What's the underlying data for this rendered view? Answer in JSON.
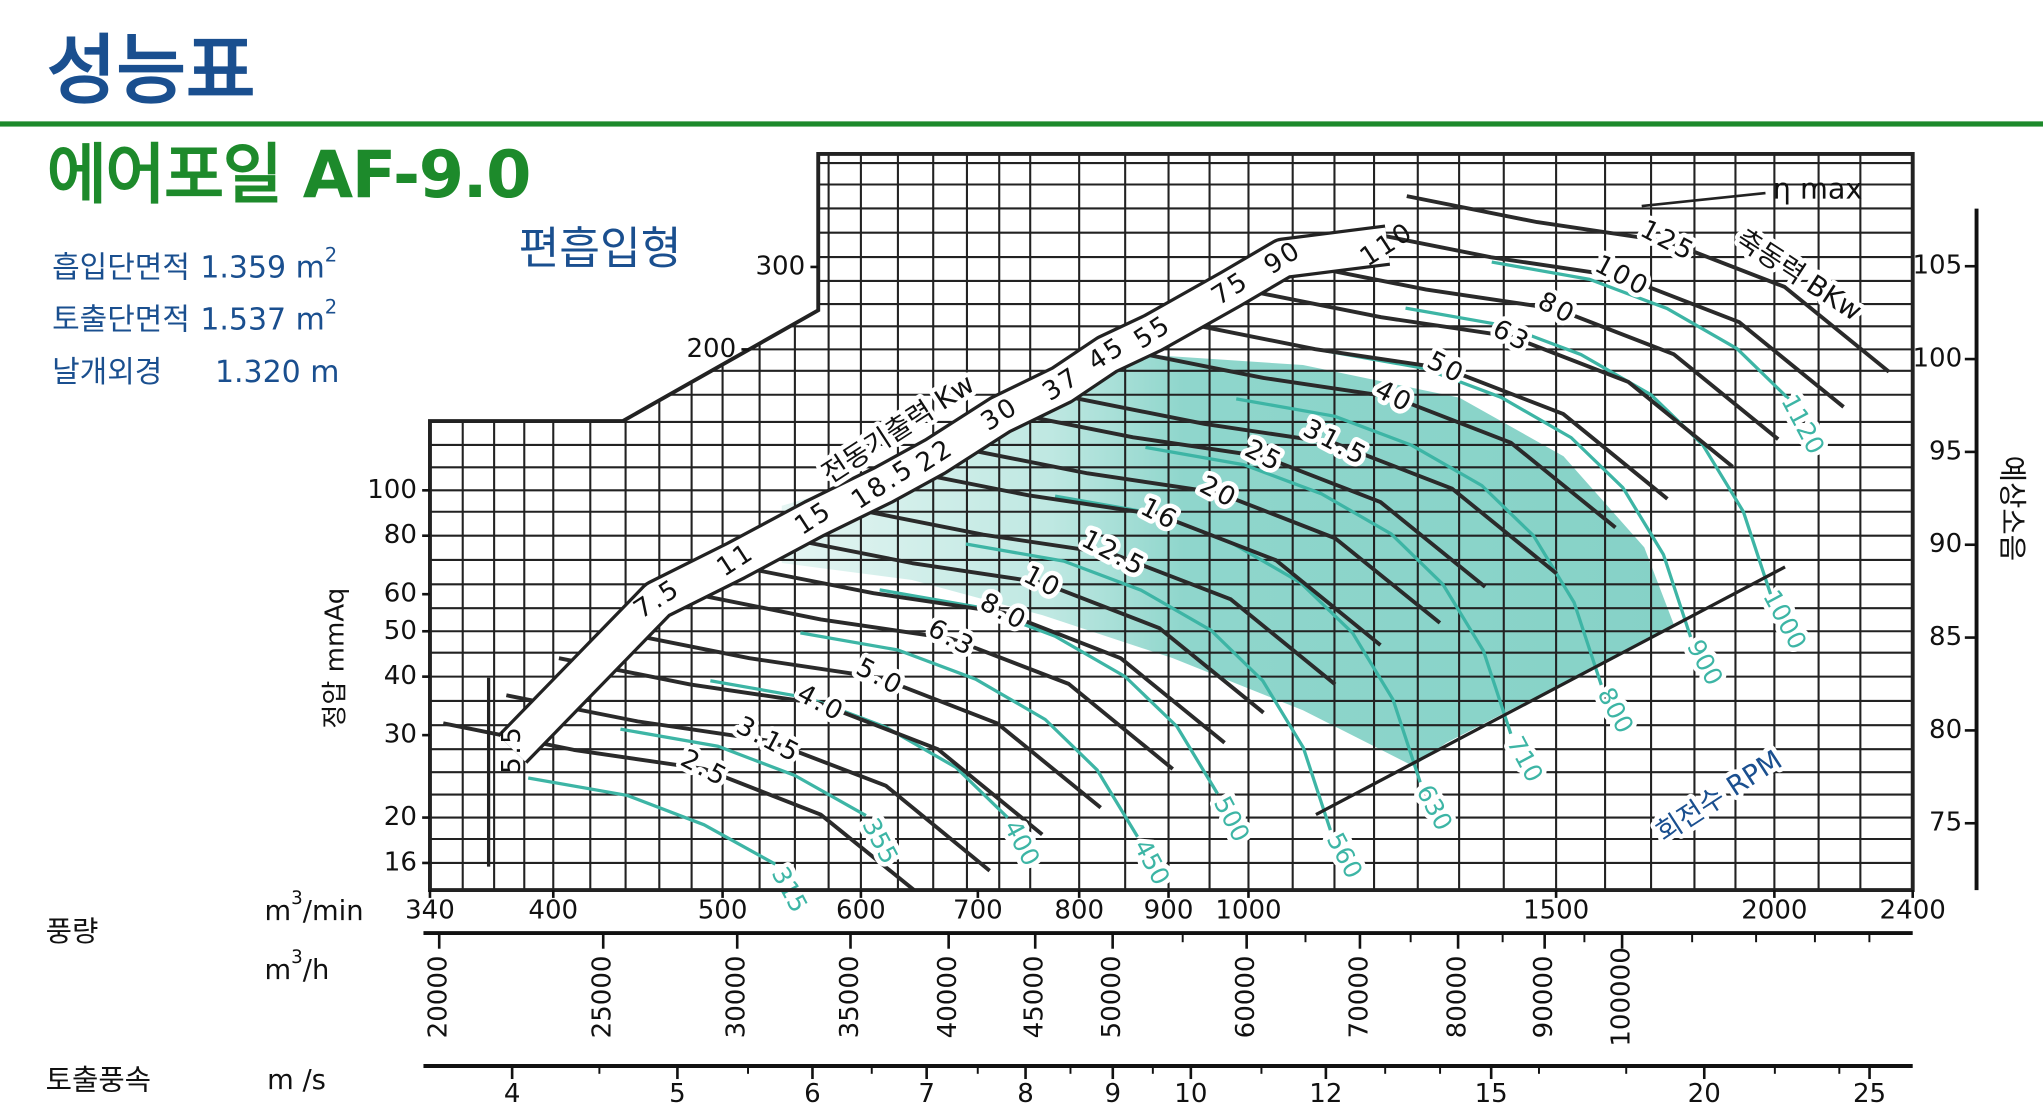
{
  "header": {
    "title": "성능표",
    "model": "에어포일 AF-9.0",
    "inlet_type": "편흡입형"
  },
  "specs": [
    {
      "label": "흡입단면적",
      "value": "1.359 m",
      "sup": "2"
    },
    {
      "label": "토출단면적",
      "value": "1.537 m",
      "sup": "2"
    },
    {
      "label": "날개외경",
      "value": "1.320 m"
    }
  ],
  "chart_data": {
    "type": "fan-performance",
    "y_label": "정압 mmAq",
    "y2_label": "예상소음",
    "flow_label": "풍량",
    "x_unit": [
      "m",
      "3",
      "/min"
    ],
    "x2_unit": [
      "m",
      "3",
      "/h"
    ],
    "x3_label": "토출풍속",
    "x3_unit": "m /s",
    "power_label": "축동력 BKw",
    "motor_label": "전동기출력 Kw",
    "rpm_label": "회전수 RPM",
    "eta_label": "η max",
    "xlog": true,
    "ylog": true,
    "grid": true,
    "xlim": [
      340,
      2400
    ],
    "xticks": [
      340,
      400,
      500,
      600,
      700,
      800,
      900,
      1000,
      1500,
      2000,
      2400
    ],
    "xgrid": [
      340,
      355,
      370,
      385,
      400,
      420,
      440,
      460,
      480,
      500,
      525,
      550,
      575,
      600,
      630,
      660,
      690,
      720,
      750,
      800,
      850,
      900,
      950,
      1000,
      1060,
      1120,
      1180,
      1250,
      1320,
      1400,
      1500,
      1600,
      1700,
      1800,
      1900,
      2000,
      2120,
      2240,
      2400
    ],
    "ylim": [
      14,
      523
    ],
    "yticks": [
      16,
      20,
      30,
      40,
      50,
      60,
      80,
      100,
      200,
      300
    ],
    "ygrid": [
      16,
      18,
      20,
      22.4,
      25,
      28,
      31.5,
      35.5,
      40,
      45,
      50,
      56,
      63,
      71,
      80,
      90,
      100,
      112,
      125,
      140,
      160,
      180,
      200,
      224,
      250,
      280,
      315,
      355,
      400,
      450,
      500
    ],
    "y2lim": [
      71.4,
      108.1
    ],
    "y2ticks": [
      75,
      80,
      85,
      90,
      95,
      100,
      105
    ],
    "x2lim": [
      19750,
      148500
    ],
    "x2ticks": [
      20000,
      25000,
      30000,
      35000,
      40000,
      45000,
      50000,
      60000,
      70000,
      80000,
      90000,
      100000
    ],
    "x2minor": [
      55000,
      65000,
      75000,
      85000,
      95000,
      110000,
      120000,
      130000,
      140000
    ],
    "x3lim": [
      3.58,
      26.5
    ],
    "x3ticks": [
      4,
      5,
      6,
      7,
      8,
      9,
      10,
      12,
      15,
      20,
      25
    ],
    "x3minor": [
      4.5,
      5.5,
      6.5,
      7.5,
      8.5,
      9.5,
      11,
      13,
      14,
      16,
      18,
      22,
      24
    ],
    "rpm_series": [
      {
        "name": "315",
        "color": "#3db5a5",
        "x": [
          387,
          441,
          488,
          536
        ],
        "values": [
          24.3,
          22.3,
          19.3,
          15.9
        ]
      },
      {
        "name": "355",
        "color": "#3db5a5",
        "x": [
          437,
          497,
          550,
          604
        ],
        "values": [
          30.9,
          28.4,
          24.6,
          20.2
        ]
      },
      {
        "name": "400",
        "color": "#3db5a5",
        "x": [
          492,
          560,
          620,
          680,
          728
        ],
        "values": [
          39.2,
          36,
          31.2,
          25.6,
          20
        ]
      },
      {
        "name": "450",
        "color": "#3db5a5",
        "x": [
          554,
          630,
          698,
          765,
          819,
          864
        ],
        "values": [
          49.6,
          45.6,
          39.5,
          32.4,
          25.3,
          18.2
        ]
      },
      {
        "name": "500",
        "color": "#3db5a5",
        "x": [
          615,
          700,
          775,
          850,
          910,
          960
        ],
        "values": [
          61.3,
          56.3,
          48.8,
          40,
          31.3,
          22.5
        ]
      },
      {
        "name": "560",
        "color": "#3db5a5",
        "x": [
          689,
          784,
          868,
          952,
          1019,
          1075,
          1114
        ],
        "values": [
          76.8,
          70.6,
          61.2,
          50.2,
          39.2,
          28.2,
          18.8
        ]
      },
      {
        "name": "630",
        "color": "#3db5a5",
        "x": [
          775,
          882,
          977,
          1071,
          1147,
          1210,
          1254
        ],
        "values": [
          97.2,
          89.3,
          77.4,
          63.5,
          49.6,
          35.7,
          23.8
        ]
      },
      {
        "name": "710",
        "color": "#3db5a5",
        "x": [
          873,
          994,
          1101,
          1207,
          1292,
          1363,
          1413
        ],
        "values": [
          123.5,
          113.4,
          98.3,
          80.7,
          63,
          45.4,
          30.2
        ]
      },
      {
        "name": "800",
        "color": "#3db5a5",
        "x": [
          984,
          1120,
          1240,
          1360,
          1456,
          1536,
          1592
        ],
        "values": [
          156.8,
          144,
          124.8,
          102.4,
          80,
          57.6,
          38.4
        ]
      },
      {
        "name": "900",
        "color": "#3db5a5",
        "x": [
          1107,
          1260,
          1395,
          1530,
          1638,
          1728,
          1791
        ],
        "values": [
          198.5,
          182.3,
          158,
          129.6,
          101.3,
          72.9,
          48.6
        ]
      },
      {
        "name": "1000",
        "color": "#3db5a5",
        "x": [
          1230,
          1400,
          1550,
          1700,
          1820,
          1920,
          1990
        ],
        "values": [
          245,
          225,
          195,
          160,
          125,
          90,
          60
        ]
      },
      {
        "name": "1120",
        "color": "#3db5a5",
        "x": [
          1378,
          1568,
          1736,
          1904,
          2038
        ],
        "values": [
          307.3,
          282.2,
          244.6,
          200.7,
          156.8
        ]
      }
    ],
    "power_series": [
      {
        "name": "2.5",
        "color": "#2a2a2a",
        "x": [
          346,
          411,
          488,
          569,
          653
        ],
        "values": [
          31.8,
          27.9,
          25.4,
          20.3,
          13.4
        ]
      },
      {
        "name": "3.15",
        "color": "#2a2a2a",
        "x": [
          376,
          447,
          531,
          620,
          711
        ],
        "values": [
          36.5,
          32.1,
          29.2,
          23.4,
          15.4
        ]
      },
      {
        "name": "4.0",
        "color": "#2a2a2a",
        "x": [
          403,
          479,
          569,
          664,
          762
        ],
        "values": [
          43.8,
          38.5,
          35,
          28,
          18.4
        ]
      },
      {
        "name": "5.0",
        "color": "#2a2a2a",
        "x": [
          436,
          518,
          615,
          718,
          823
        ],
        "values": [
          49.8,
          43.8,
          39.8,
          31.8,
          21
        ]
      },
      {
        "name": "6.3",
        "color": "#2a2a2a",
        "x": [
          479,
          569,
          676,
          789,
          905
        ],
        "values": [
          60.3,
          53,
          48.2,
          38.6,
          25.4
        ]
      },
      {
        "name": "8.0",
        "color": "#2a2a2a",
        "x": [
          513,
          610,
          724,
          845,
          969
        ],
        "values": [
          68.5,
          60.3,
          54.8,
          43.8,
          28.9
        ]
      },
      {
        "name": "10",
        "color": "#2a2a2a",
        "x": [
          540,
          642,
          762,
          889,
          1020
        ],
        "values": [
          79.4,
          69.9,
          63.5,
          50.8,
          33.5
        ]
      },
      {
        "name": "12.5",
        "color": "#2a2a2a",
        "x": [
          593,
          705,
          837,
          977,
          1121
        ],
        "values": [
          91.4,
          80.4,
          73.1,
          58.5,
          38.5
        ]
      },
      {
        "name": "16",
        "color": "#2a2a2a",
        "x": [
          630,
          749,
          889,
          1037,
          1190
        ],
        "values": [
          110.8,
          97.5,
          88.6,
          70.9,
          46.7
        ]
      },
      {
        "name": "20",
        "color": "#2a2a2a",
        "x": [
          681,
          809,
          961,
          1121,
          1287
        ],
        "values": [
          123.5,
          108.7,
          98.8,
          79,
          52.1
        ]
      },
      {
        "name": "25",
        "color": "#2a2a2a",
        "x": [
          723,
          859,
          1020,
          1190,
          1366
        ],
        "values": [
          147.5,
          129.8,
          118,
          94.4,
          62.2
        ]
      },
      {
        "name": "31.5",
        "color": "#2a2a2a",
        "x": [
          795,
          944,
          1121,
          1308,
          1501
        ],
        "values": [
          157.5,
          138.6,
          126,
          100.8,
          66.4
        ]
      },
      {
        "name": "40",
        "color": "#2a2a2a",
        "x": [
          859,
          1020,
          1211,
          1413,
          1622
        ],
        "values": [
          197.5,
          173.8,
          158,
          126.4,
          83.3
        ]
      },
      {
        "name": "50",
        "color": "#2a2a2a",
        "x": [
          920,
          1092,
          1297,
          1514,
          1737
        ],
        "values": [
          227.5,
          200.2,
          182,
          145.6,
          95.9
        ]
      },
      {
        "name": "63",
        "color": "#2a2a2a",
        "x": [
          1003,
          1191,
          1414,
          1650,
          1893
        ],
        "values": [
          266.3,
          234.3,
          213,
          170.4,
          112.3
        ]
      },
      {
        "name": "80",
        "color": "#2a2a2a",
        "x": [
          1064,
          1264,
          1501,
          1752,
          2010
        ],
        "values": [
          305,
          268.4,
          244,
          195.2,
          128.6
        ]
      },
      {
        "name": "100",
        "color": "#2a2a2a",
        "x": [
          1160,
          1377,
          1636,
          1909,
          2191
        ],
        "values": [
          357.5,
          314.6,
          286,
          228.8,
          150.7
        ]
      },
      {
        "name": "125",
        "color": "#2a2a2a",
        "x": [
          1232,
          1463,
          1737,
          2027,
          2326
        ],
        "values": [
          425,
          374,
          340,
          272,
          179.2
        ]
      }
    ],
    "motor_kw": {
      "labels": [
        "5.5",
        "7.5",
        "11",
        "15",
        "18.5",
        "22",
        "30",
        "37",
        "45",
        "55",
        "75",
        "90",
        "110"
      ],
      "x": [
        379,
        459,
        509,
        564,
        618,
        662,
        721,
        782,
        830,
        882,
        977,
        1047,
        1201
      ],
      "values": [
        28,
        58.4,
        70.8,
        86.9,
        102.7,
        118.2,
        145,
        168,
        195,
        217,
        269,
        313,
        334
      ]
    }
  }
}
